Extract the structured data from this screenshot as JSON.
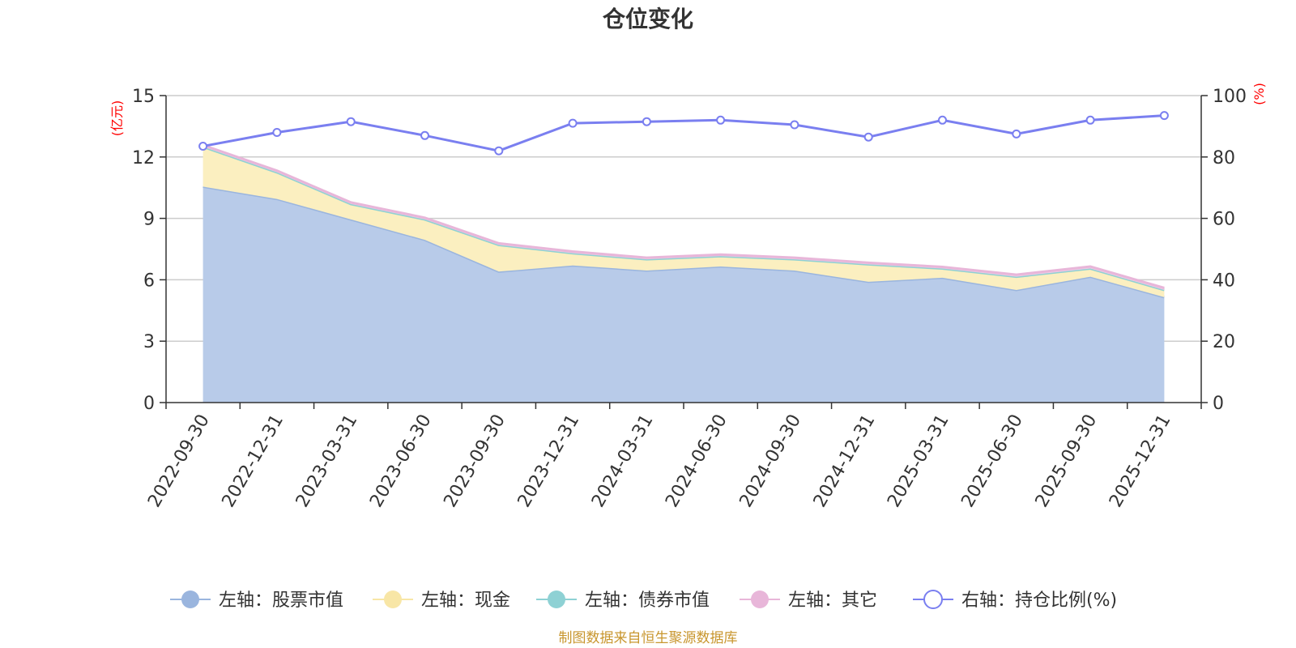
{
  "chart_data": {
    "type": "area",
    "title": "仓位变化",
    "left_unit": "(亿元)",
    "right_unit": "(%)",
    "categories": [
      "2022-09-30",
      "2022-12-31",
      "2023-03-31",
      "2023-06-30",
      "2023-09-30",
      "2023-12-31",
      "2024-03-31",
      "2024-06-30",
      "2024-09-30",
      "2024-12-31",
      "2025-03-31",
      "2025-06-30",
      "2025-09-30",
      "2025-12-31"
    ],
    "left_axis": {
      "min": 0,
      "max": 15,
      "ticks": [
        "0",
        "3",
        "6",
        "9",
        "12",
        "15"
      ],
      "tick_values": [
        0,
        3,
        6,
        9,
        12,
        15
      ]
    },
    "right_axis": {
      "min": 0,
      "max": 100,
      "ticks": [
        "0",
        "20",
        "40",
        "60",
        "80",
        "100"
      ],
      "tick_values": [
        0,
        20,
        40,
        60,
        80,
        100
      ]
    },
    "series": [
      {
        "name": "左轴：股票市值",
        "axis": "left",
        "type": "area",
        "color": "#9ab5de",
        "fill": "#b8cbe9",
        "values": [
          10.55,
          9.95,
          8.95,
          7.95,
          6.4,
          6.7,
          6.45,
          6.65,
          6.45,
          5.9,
          6.1,
          5.5,
          6.15,
          5.15
        ]
      },
      {
        "name": "左轴：现金",
        "axis": "left",
        "type": "area",
        "color": "#f8e6a6",
        "fill": "#fbefc0",
        "values": [
          1.95,
          1.3,
          0.75,
          1.0,
          1.3,
          0.6,
          0.55,
          0.5,
          0.55,
          0.85,
          0.45,
          0.65,
          0.4,
          0.35
        ]
      },
      {
        "name": "左轴：债券市值",
        "axis": "left",
        "type": "area",
        "color": "#8ed1d4",
        "fill": "#a9dcdf",
        "values": [
          0,
          0,
          0,
          0,
          0,
          0,
          0,
          0,
          0,
          0,
          0,
          0,
          0,
          0
        ]
      },
      {
        "name": "左轴：其它",
        "axis": "left",
        "type": "area",
        "color": "#e8b6d9",
        "fill": "#f0cbe5",
        "values": [
          0.08,
          0.08,
          0.08,
          0.08,
          0.08,
          0.08,
          0.08,
          0.08,
          0.08,
          0.08,
          0.08,
          0.1,
          0.1,
          0.1
        ]
      },
      {
        "name": "右轴：持仓比例(%)",
        "axis": "right",
        "type": "line",
        "color": "#7a7ff0",
        "values": [
          83.5,
          88.0,
          91.5,
          87.0,
          82.0,
          91.0,
          91.5,
          92.0,
          90.5,
          86.5,
          92.0,
          87.5,
          92.0,
          93.5
        ]
      }
    ],
    "legend_position": "bottom",
    "grid": true,
    "source": "制图数据来自恒生聚源数据库"
  }
}
